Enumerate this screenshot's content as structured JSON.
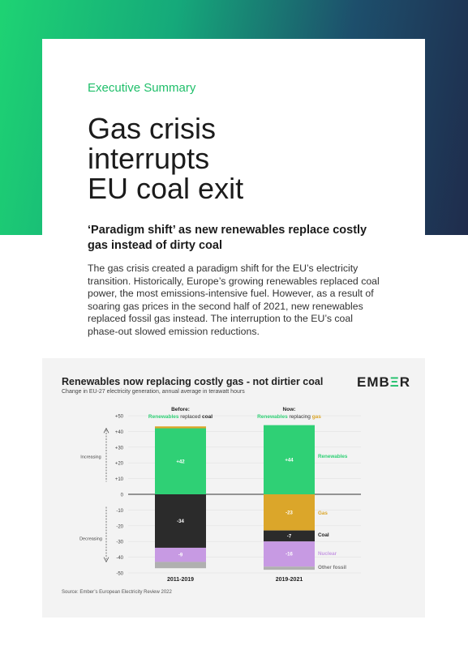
{
  "header": {
    "kicker": "Executive Summary",
    "title_lines": [
      "Gas crisis",
      "interrupts",
      "EU coal exit"
    ],
    "subtitle": "‘Paradigm shift’ as new renewables replace costly gas instead of dirty coal"
  },
  "body": "The gas crisis created a paradigm shift for the EU’s electricity transition. Historically, Europe’s growing renewables replaced coal power, the most emissions-intensive fuel. However, as a result of soaring gas prices in the second half of 2021, new renewables replaced fossil gas instead. The interruption to the EU’s coal phase-out slowed emission reductions.",
  "chart_data": {
    "type": "bar",
    "title": "Renewables now replacing costly gas - not dirtier coal",
    "subtitle": "Change in EU-27 electricity generation, annual average in terawatt hours",
    "brand": "EMBER",
    "source": "Source: Ember’s European Electricity Review 2022",
    "ylim": [
      -50,
      50
    ],
    "yticks": [
      "+50",
      "+40",
      "+30",
      "+20",
      "+10",
      "0",
      "-10",
      "-20",
      "-30",
      "-40",
      "-50"
    ],
    "increasing_label": "Increasing",
    "decreasing_label": "Decreasing",
    "categories": [
      "2011-2019",
      "2019-2021"
    ],
    "column_headers": [
      {
        "heading": "Before:",
        "line_a": "Renewables",
        "line_b": " replaced ",
        "line_c": "coal"
      },
      {
        "heading": "Now:",
        "line_a": "Renewables",
        "line_b": " replacing ",
        "line_c": "gas"
      }
    ],
    "colors": {
      "Renewables": "#2fd075",
      "Gas": "#dba62a",
      "Coal": "#2b2b2b",
      "Nuclear": "#c79ae3",
      "Other fossil": "#b0b0b0"
    },
    "series": [
      {
        "name": "Renewables",
        "values": [
          42,
          44
        ],
        "labels": [
          "+42",
          "+44"
        ]
      },
      {
        "name": "Gas",
        "values": [
          1.2,
          -23
        ],
        "labels": [
          "",
          "-23"
        ]
      },
      {
        "name": "Coal",
        "values": [
          -34,
          -7
        ],
        "labels": [
          "-34",
          "-7"
        ]
      },
      {
        "name": "Nuclear",
        "values": [
          -9,
          -16
        ],
        "labels": [
          "-9",
          "-16"
        ]
      },
      {
        "name": "Other fossil",
        "values": [
          -4,
          -2
        ],
        "labels": [
          "",
          ""
        ]
      }
    ]
  }
}
